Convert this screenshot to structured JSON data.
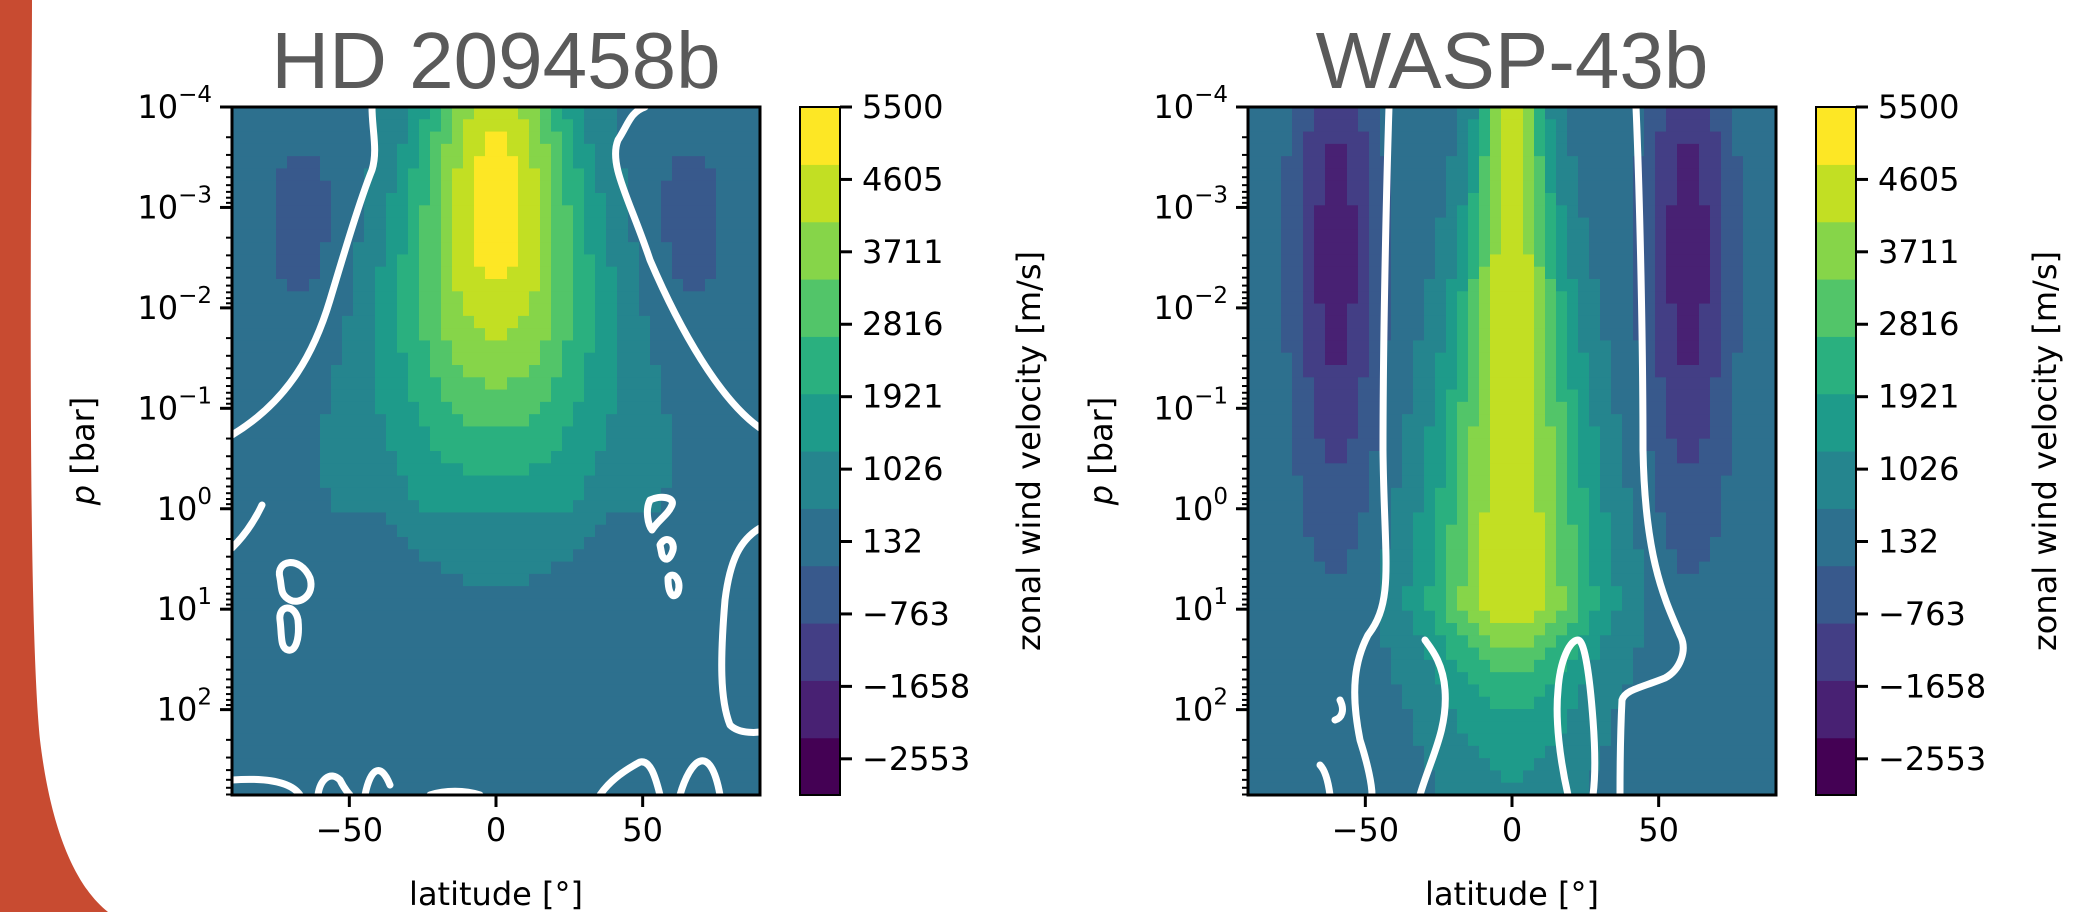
{
  "colormap": [
    "#440154",
    "#482173",
    "#433e85",
    "#38598c",
    "#2d708e",
    "#25858e",
    "#1e9b8a",
    "#2ab07f",
    "#52c569",
    "#86d549",
    "#c2df23",
    "#fde725"
  ],
  "colors": {
    "contour": "#ffffff",
    "background_accent": "#c84b31",
    "title": "#5a5a5a"
  },
  "colorbar": {
    "label": "zonal wind velocity [m/s]",
    "ticks": [
      5500,
      4605,
      3711,
      2816,
      1921,
      1026,
      132,
      -763,
      -1658,
      -2553
    ],
    "tick_labels": [
      "5500",
      "4605",
      "3711",
      "2816",
      "1921",
      "1026",
      "132",
      "−763",
      "−1658",
      "−2553"
    ],
    "range": [
      -3000,
      5500
    ]
  },
  "chart_data": [
    {
      "type": "heatmap",
      "title": "HD 209458b",
      "xlabel": "latitude [°]",
      "ylabel_italic": "p",
      "ylabel_rest": " [bar]",
      "x_ticks": [
        -50,
        0,
        50
      ],
      "x_tick_labels": [
        "−50",
        "0",
        "50"
      ],
      "y_tick_labels": [
        {
          "base": "10",
          "exp": "−4"
        },
        {
          "base": "10",
          "exp": "−3"
        },
        {
          "base": "10",
          "exp": "−2"
        },
        {
          "base": "10",
          "exp": "−1"
        },
        {
          "base": "10",
          "exp": "0"
        },
        {
          "base": "10",
          "exp": "1"
        },
        {
          "base": "10",
          "exp": "2"
        }
      ],
      "xlim": [
        -90,
        90
      ],
      "ylim_log10_pressure": [
        -4,
        2.85
      ],
      "y_scale": "log",
      "jet_peak_velocity": 4900,
      "jet_peak_log10_pressure": -3,
      "background_velocity": 300,
      "zero_wind_contour": true
    },
    {
      "type": "heatmap",
      "title": "WASP-43b",
      "xlabel": "latitude [°]",
      "ylabel_italic": "p",
      "ylabel_rest": " [bar]",
      "x_ticks": [
        -50,
        0,
        50
      ],
      "x_tick_labels": [
        "−50",
        "0",
        "50"
      ],
      "y_tick_labels": [
        {
          "base": "10",
          "exp": "−4"
        },
        {
          "base": "10",
          "exp": "−3"
        },
        {
          "base": "10",
          "exp": "−2"
        },
        {
          "base": "10",
          "exp": "−1"
        },
        {
          "base": "10",
          "exp": "0"
        },
        {
          "base": "10",
          "exp": "1"
        },
        {
          "base": "10",
          "exp": "2"
        }
      ],
      "xlim": [
        -90,
        90
      ],
      "ylim_log10_pressure": [
        -4,
        2.85
      ],
      "y_scale": "log",
      "jet_peak_velocity": 4300,
      "jet_peak_log10_pressure": -3,
      "counter_jet_velocity": -2300,
      "counter_jet_latitude": 60,
      "zero_wind_contour": true
    }
  ]
}
